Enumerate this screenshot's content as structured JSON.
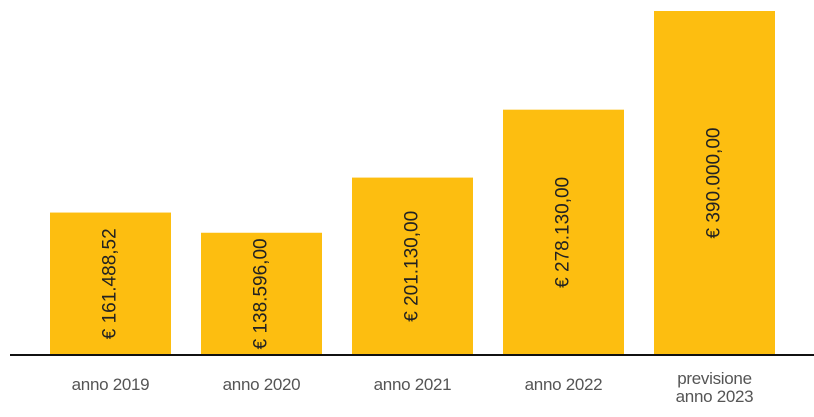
{
  "chart_data": {
    "type": "bar",
    "categories": [
      "anno 2019",
      "anno 2020",
      "anno 2021",
      "anno 2022",
      "previsione anno 2023"
    ],
    "values": [
      161488.52,
      138596,
      201130,
      278130,
      390000
    ],
    "value_labels": [
      "€ 161.488,52",
      "€ 138.596,00",
      "€ 201.130,00",
      "€ 278.130,00",
      "€ 390.000,00"
    ],
    "color": "#fdbe10"
  }
}
